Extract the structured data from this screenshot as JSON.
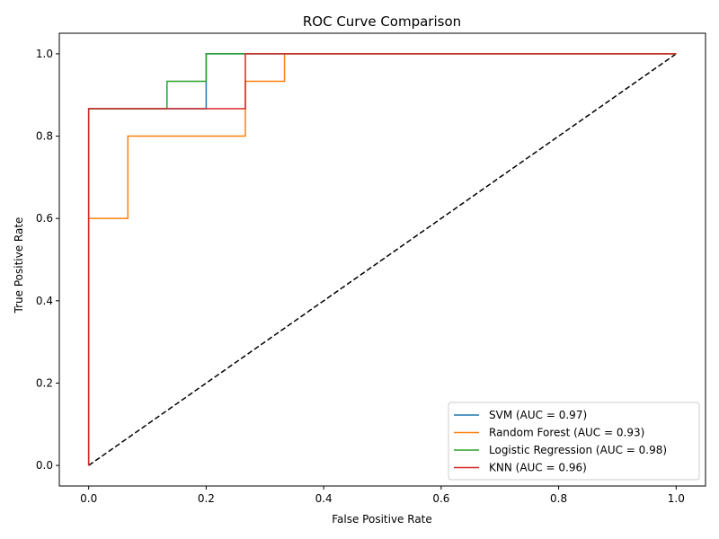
{
  "chart_data": {
    "type": "line",
    "title": "ROC Curve Comparison",
    "xlabel": "False Positive Rate",
    "ylabel": "True Positive Rate",
    "xlim": [
      -0.05,
      1.05
    ],
    "ylim": [
      -0.05,
      1.05
    ],
    "xticks": [
      0.0,
      0.2,
      0.4,
      0.6,
      0.8,
      1.0
    ],
    "yticks": [
      0.0,
      0.2,
      0.4,
      0.6,
      0.8,
      1.0
    ],
    "xtick_labels": [
      "0.0",
      "0.2",
      "0.4",
      "0.6",
      "0.8",
      "1.0"
    ],
    "ytick_labels": [
      "0.0",
      "0.2",
      "0.4",
      "0.6",
      "0.8",
      "1.0"
    ],
    "grid": false,
    "legend_position": "lower-right",
    "series": [
      {
        "name": "SVM (AUC = 0.97)",
        "color": "#1f77b4",
        "x": [
          0.0,
          0.0,
          0.2,
          0.2,
          0.2667,
          0.2667,
          1.0
        ],
        "y": [
          0.0,
          0.8667,
          0.8667,
          1.0,
          1.0,
          1.0,
          1.0
        ]
      },
      {
        "name": "Random Forest (AUC = 0.93)",
        "color": "#ff7f0e",
        "x": [
          0.0,
          0.0,
          0.0667,
          0.0667,
          0.2667,
          0.2667,
          0.3333,
          0.3333,
          1.0
        ],
        "y": [
          0.0,
          0.6,
          0.6,
          0.8,
          0.8,
          0.9333,
          0.9333,
          1.0,
          1.0
        ]
      },
      {
        "name": "Logistic Regression (AUC = 0.98)",
        "color": "#2ca02c",
        "x": [
          0.0,
          0.0,
          0.1333,
          0.1333,
          0.2,
          0.2,
          1.0
        ],
        "y": [
          0.0,
          0.8667,
          0.8667,
          0.9333,
          0.9333,
          1.0,
          1.0
        ]
      },
      {
        "name": "KNN (AUC = 0.96)",
        "color": "#d62728",
        "x": [
          0.0,
          0.0,
          0.2667,
          0.2667,
          1.0
        ],
        "y": [
          0.0,
          0.8667,
          0.8667,
          1.0,
          1.0
        ]
      }
    ],
    "reference_line": {
      "x": [
        0.0,
        1.0
      ],
      "y": [
        0.0,
        1.0
      ],
      "color": "#000000",
      "style": "dashed"
    }
  }
}
